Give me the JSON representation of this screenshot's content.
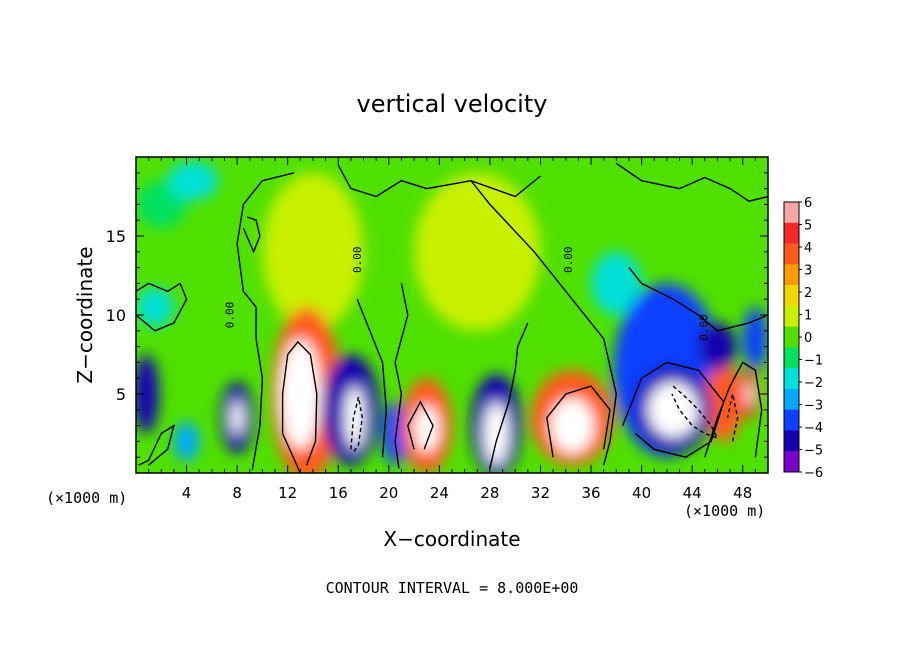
{
  "chart_data": {
    "type": "heatmap",
    "title": "vertical velocity",
    "xlabel": "X−coordinate",
    "ylabel": "Z−coordinate",
    "x_unit_left": "(×1000 m)",
    "x_unit_right": "(×1000 m)",
    "footer": "CONTOUR INTERVAL = 8.000E+00",
    "xlim": [
      0,
      50
    ],
    "ylim": [
      0,
      20
    ],
    "x_ticks": [
      4,
      8,
      12,
      16,
      20,
      24,
      28,
      32,
      36,
      40,
      44,
      48
    ],
    "y_ticks": [
      5,
      10,
      15
    ],
    "contour_label": "0.00",
    "colorbar": {
      "min": -6,
      "max": 6,
      "labels": [
        "6",
        "5",
        "4",
        "3",
        "2",
        "1",
        "0",
        "−1",
        "−2",
        "−3",
        "−4",
        "−5",
        "−6"
      ],
      "colors": [
        "#f7a6a6",
        "#f22a2a",
        "#ff5a1c",
        "#ff9a00",
        "#f0d800",
        "#c8f000",
        "#50e000",
        "#00e060",
        "#00e0d8",
        "#00a8ff",
        "#1040ff",
        "#1400b0",
        "#7a00c8"
      ]
    },
    "cells": [
      {
        "x": 0.8,
        "z": 5.0,
        "w": 2.0,
        "h": 5.0,
        "v": -4.5
      },
      {
        "x": 1.5,
        "z": 10.5,
        "w": 3.0,
        "h": 2.5,
        "v": -2.2
      },
      {
        "x": 4.0,
        "z": 2.0,
        "w": 2.0,
        "h": 2.5,
        "v": -2.8
      },
      {
        "x": 4.5,
        "z": 18.5,
        "w": 4.0,
        "h": 2.5,
        "v": -1.8
      },
      {
        "x": 8.0,
        "z": 3.5,
        "w": 2.6,
        "h": 4.5,
        "v": -4.5
      },
      {
        "x": 8.0,
        "z": 3.5,
        "w": 1.0,
        "h": 2.2,
        "v": 7
      },
      {
        "x": 13.5,
        "z": 5.0,
        "w": 5.5,
        "h": 11.0,
        "v": 4.5
      },
      {
        "x": 13.0,
        "z": 5.0,
        "w": 3.2,
        "h": 7.0,
        "v": 7
      },
      {
        "x": 14.0,
        "z": 14.0,
        "w": 8.0,
        "h": 10.0,
        "v": 1.2
      },
      {
        "x": 17.0,
        "z": 4.0,
        "w": 4.5,
        "h": 7.0,
        "v": -4.5
      },
      {
        "x": 17.3,
        "z": 3.5,
        "w": 1.6,
        "h": 4.0,
        "v": 7
      },
      {
        "x": 20.5,
        "z": 2.5,
        "w": 2.0,
        "h": 4.0,
        "v": -4
      },
      {
        "x": 23.0,
        "z": 3.0,
        "w": 4.0,
        "h": 6.0,
        "v": 4.5
      },
      {
        "x": 23.0,
        "z": 2.8,
        "w": 2.0,
        "h": 3.0,
        "v": 7
      },
      {
        "x": 28.5,
        "z": 3.0,
        "w": 4.0,
        "h": 6.5,
        "v": -4.5
      },
      {
        "x": 28.5,
        "z": 2.5,
        "w": 2.0,
        "h": 4.0,
        "v": 7
      },
      {
        "x": 27.0,
        "z": 14.0,
        "w": 10.0,
        "h": 10.0,
        "v": 1.3
      },
      {
        "x": 34.5,
        "z": 3.5,
        "w": 6.5,
        "h": 6.0,
        "v": 4.5
      },
      {
        "x": 34.5,
        "z": 3.0,
        "w": 3.5,
        "h": 3.5,
        "v": 7
      },
      {
        "x": 42.0,
        "z": 6.5,
        "w": 8.5,
        "h": 11.0,
        "v": -3.5
      },
      {
        "x": 42.5,
        "z": 4.0,
        "w": 6.0,
        "h": 5.5,
        "v": -5
      },
      {
        "x": 42.5,
        "z": 4.0,
        "w": 4.0,
        "h": 3.5,
        "v": 7
      },
      {
        "x": 46.5,
        "z": 4.5,
        "w": 3.0,
        "h": 5.0,
        "v": 4
      },
      {
        "x": 46.0,
        "z": 8.0,
        "w": 3.0,
        "h": 3.0,
        "v": -4.5
      },
      {
        "x": 48.5,
        "z": 5.0,
        "w": 1.6,
        "h": 3.0,
        "v": 5
      },
      {
        "x": 48.5,
        "z": 5.0,
        "w": 0.6,
        "h": 1.5,
        "v": 7
      },
      {
        "x": 49.0,
        "z": 8.5,
        "w": 2.0,
        "h": 4.0,
        "v": -3.5
      },
      {
        "x": 38.0,
        "z": 12.0,
        "w": 4.0,
        "h": 4.0,
        "v": -1.5
      },
      {
        "x": 2.0,
        "z": 17.0,
        "w": 4.0,
        "h": 3.0,
        "v": -1.2
      }
    ],
    "contours": [
      {
        "style": "solid",
        "points": [
          [
            0.2,
            0.5
          ],
          [
            1.0,
            0.8
          ],
          [
            2.0,
            2.5
          ],
          [
            3.0,
            3.0
          ],
          [
            2.5,
            1.5
          ],
          [
            1.0,
            0.5
          ]
        ]
      },
      {
        "style": "solid",
        "points": [
          [
            9.2,
            0.2
          ],
          [
            9.8,
            3.0
          ],
          [
            10.0,
            6.0
          ],
          [
            9.5,
            8.5
          ],
          [
            9.5,
            10.5
          ],
          [
            8.5,
            11.5
          ],
          [
            8.0,
            14.5
          ],
          [
            8.5,
            17.0
          ],
          [
            10.0,
            18.5
          ],
          [
            12.5,
            19.0
          ]
        ]
      },
      {
        "style": "solid",
        "points": [
          [
            13.0,
            0.0
          ],
          [
            11.6,
            2.5
          ],
          [
            11.6,
            5.0
          ],
          [
            12.0,
            7.5
          ],
          [
            12.8,
            8.3
          ],
          [
            13.8,
            7.5
          ],
          [
            14.3,
            5.0
          ],
          [
            14.2,
            2.0
          ],
          [
            13.5,
            0.5
          ]
        ]
      },
      {
        "style": "solid",
        "points": [
          [
            16.0,
            19.5
          ],
          [
            17.0,
            18.0
          ],
          [
            19.0,
            17.5
          ],
          [
            21.0,
            18.5
          ],
          [
            23.0,
            18.0
          ],
          [
            26.5,
            18.5
          ],
          [
            30.0,
            17.5
          ],
          [
            32.0,
            18.8
          ]
        ]
      },
      {
        "style": "solid",
        "points": [
          [
            17.5,
            11.0
          ],
          [
            18.5,
            9.0
          ],
          [
            19.5,
            7.0
          ],
          [
            19.8,
            4.0
          ],
          [
            19.5,
            1.0
          ]
        ]
      },
      {
        "style": "solid",
        "points": [
          [
            21.0,
            12.0
          ],
          [
            21.5,
            10.0
          ],
          [
            20.5,
            7.0
          ],
          [
            21.0,
            5.0
          ],
          [
            20.5,
            2.0
          ],
          [
            20.8,
            0.3
          ]
        ]
      },
      {
        "style": "solid",
        "points": [
          [
            26.5,
            18.5
          ],
          [
            28.0,
            17.0
          ],
          [
            31.5,
            14.0
          ],
          [
            34.5,
            11.0
          ],
          [
            37.0,
            8.5
          ],
          [
            38.0,
            5.0
          ],
          [
            37.5,
            2.0
          ],
          [
            37.0,
            0.5
          ]
        ]
      },
      {
        "style": "solid",
        "points": [
          [
            22.0,
            1.5
          ],
          [
            21.5,
            3.0
          ],
          [
            22.5,
            4.5
          ],
          [
            23.5,
            3.0
          ],
          [
            22.8,
            1.5
          ]
        ]
      },
      {
        "style": "solid",
        "points": [
          [
            28.0,
            0.3
          ],
          [
            28.5,
            2.0
          ],
          [
            29.5,
            4.5
          ],
          [
            30.0,
            6.5
          ],
          [
            30.2,
            8.0
          ],
          [
            31.0,
            9.5
          ]
        ]
      },
      {
        "style": "solid",
        "points": [
          [
            33.0,
            1.0
          ],
          [
            32.5,
            3.5
          ],
          [
            34.0,
            5.0
          ],
          [
            36.0,
            5.5
          ],
          [
            37.5,
            4.0
          ],
          [
            37.0,
            1.5
          ]
        ]
      },
      {
        "style": "solid",
        "points": [
          [
            39.0,
            13.0
          ],
          [
            40.0,
            12.0
          ],
          [
            42.5,
            11.0
          ],
          [
            44.5,
            10.0
          ],
          [
            46.0,
            9.0
          ],
          [
            48.5,
            9.5
          ],
          [
            50.0,
            10.0
          ]
        ]
      },
      {
        "style": "solid",
        "points": [
          [
            38.5,
            3.0
          ],
          [
            40.0,
            6.0
          ],
          [
            42.0,
            7.0
          ],
          [
            44.5,
            6.5
          ],
          [
            46.5,
            4.5
          ],
          [
            45.5,
            2.0
          ],
          [
            43.5,
            1.0
          ],
          [
            41.0,
            1.5
          ],
          [
            39.5,
            2.5
          ]
        ]
      },
      {
        "style": "solid",
        "points": [
          [
            45.0,
            1.0
          ],
          [
            46.0,
            3.5
          ],
          [
            47.0,
            5.5
          ],
          [
            48.0,
            7.0
          ],
          [
            49.0,
            6.5
          ],
          [
            49.5,
            4.0
          ],
          [
            49.0,
            1.0
          ]
        ]
      },
      {
        "style": "solid",
        "points": [
          [
            38.0,
            19.6
          ],
          [
            40.0,
            18.5
          ],
          [
            43.0,
            18.0
          ],
          [
            45.0,
            18.7
          ],
          [
            47.0,
            18.0
          ],
          [
            48.5,
            17.2
          ],
          [
            50.0,
            17.5
          ]
        ]
      },
      {
        "style": "solid",
        "points": [
          [
            8.5,
            15.5
          ],
          [
            9.3,
            14.0
          ],
          [
            9.8,
            15.0
          ],
          [
            9.5,
            16.0
          ],
          [
            8.8,
            16.2
          ]
        ]
      },
      {
        "style": "solid",
        "points": [
          [
            0.0,
            10.0
          ],
          [
            1.5,
            9.0
          ],
          [
            3.0,
            9.5
          ],
          [
            4.0,
            11.0
          ],
          [
            3.5,
            12.0
          ],
          [
            2.5,
            11.5
          ],
          [
            1.0,
            12.0
          ],
          [
            0.0,
            11.5
          ]
        ]
      },
      {
        "style": "dashed",
        "points": [
          [
            17.0,
            1.5
          ],
          [
            17.2,
            3.5
          ],
          [
            17.6,
            4.8
          ],
          [
            17.9,
            3.5
          ],
          [
            17.6,
            1.8
          ],
          [
            17.2,
            1.3
          ]
        ]
      },
      {
        "style": "dashed",
        "points": [
          [
            42.5,
            5.5
          ],
          [
            43.5,
            4.8
          ],
          [
            44.5,
            4.0
          ],
          [
            45.5,
            3.0
          ],
          [
            46.0,
            2.2
          ],
          [
            45.0,
            2.5
          ],
          [
            44.0,
            3.0
          ],
          [
            43.0,
            4.0
          ],
          [
            42.4,
            5.0
          ]
        ]
      },
      {
        "style": "dashed",
        "points": [
          [
            47.2,
            2.0
          ],
          [
            47.6,
            3.5
          ],
          [
            47.2,
            5.0
          ],
          [
            46.8,
            3.5
          ]
        ]
      }
    ]
  }
}
